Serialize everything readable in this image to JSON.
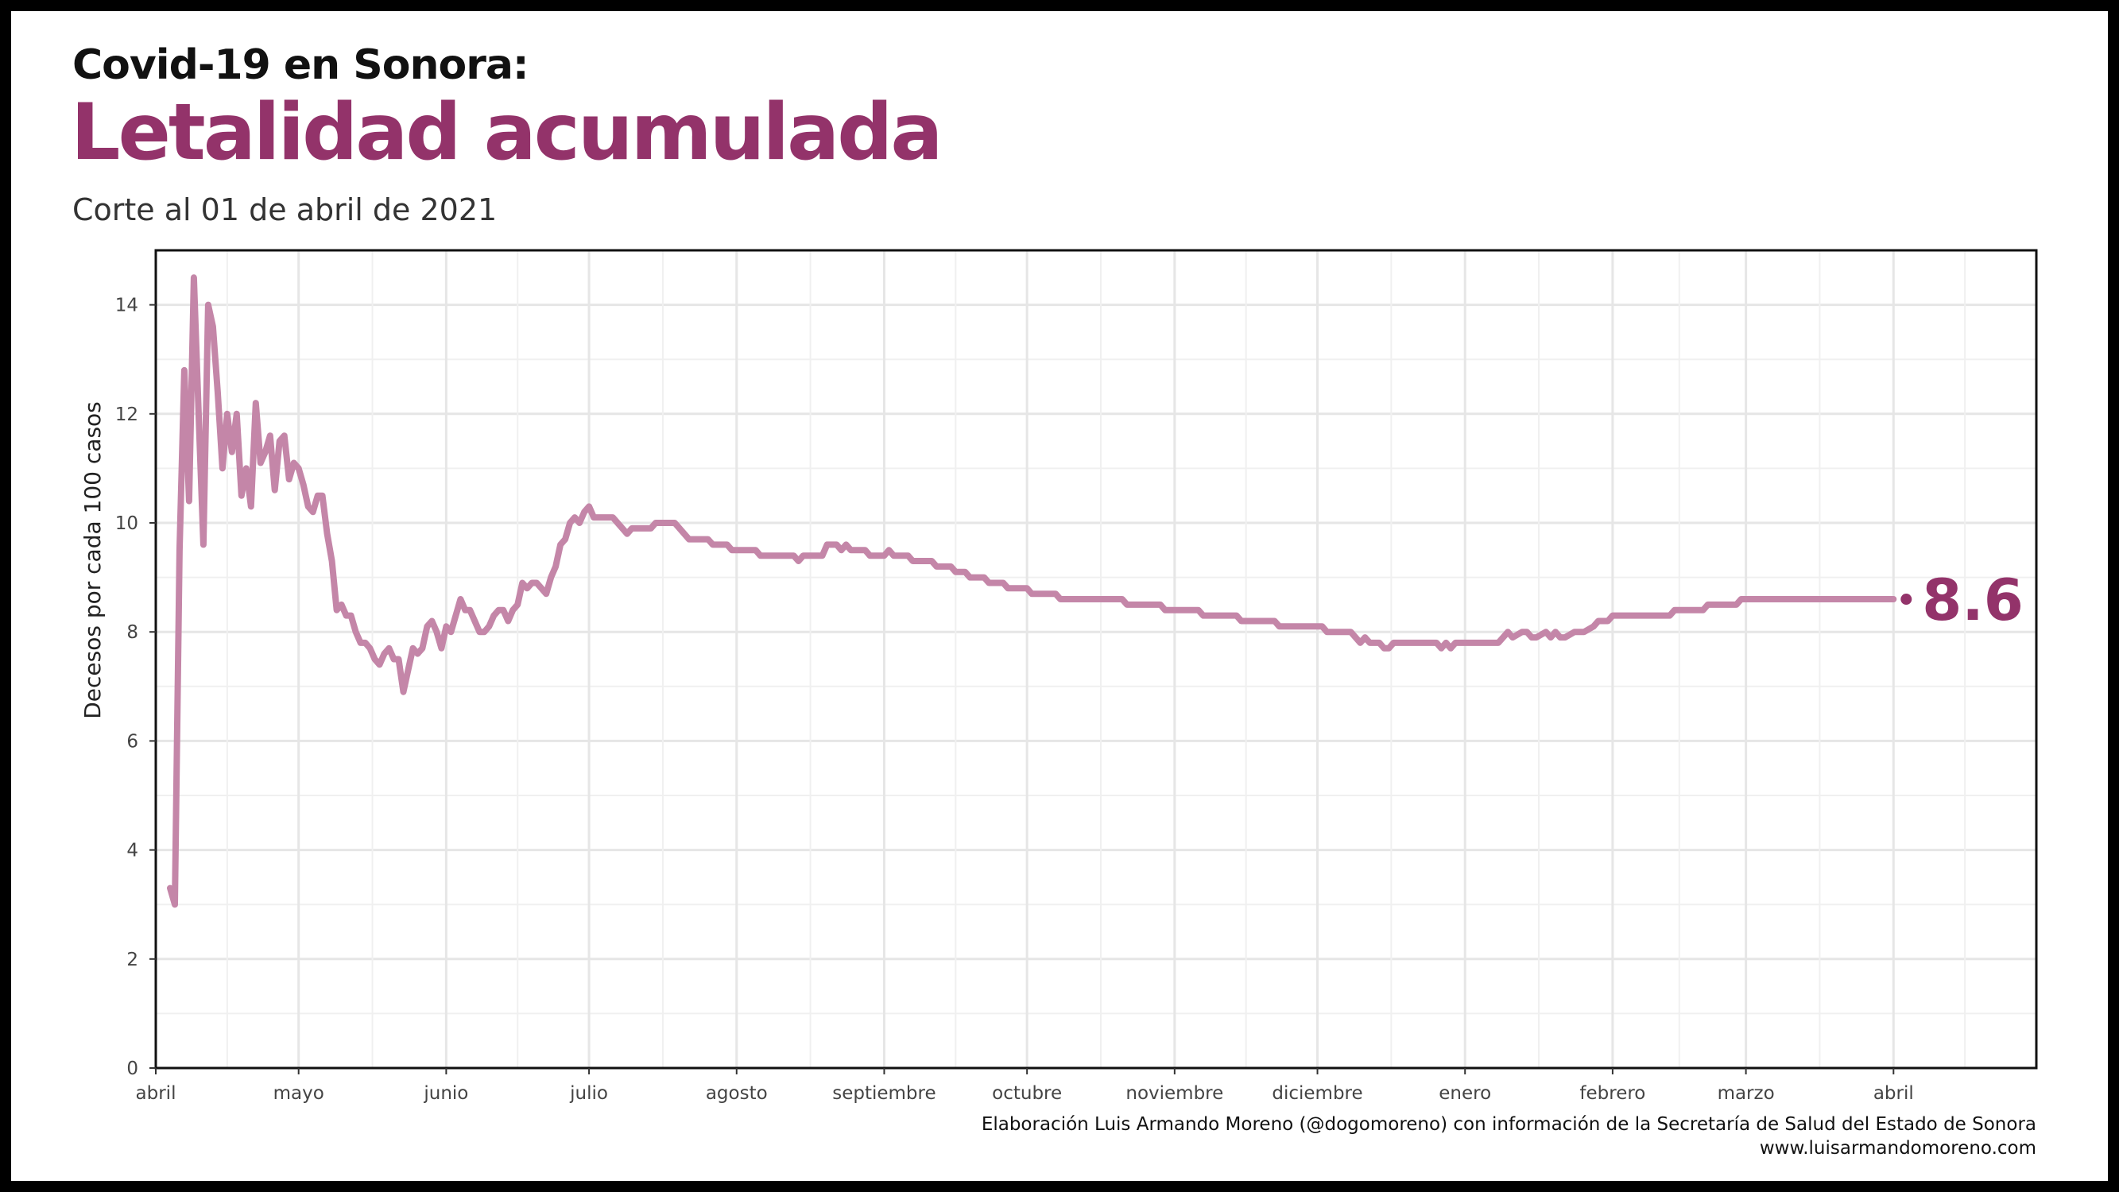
{
  "header": {
    "title_pre": "Covid-19 en Sonora:",
    "title_main": "Letalidad acumulada",
    "subtitle": "Corte al 01 de abril de 2021"
  },
  "caption": {
    "line1": "Elaboración Luis Armando Moreno (@dogomoreno) con información de la Secretaría de Salud del Estado de Sonora",
    "line2": "www.luisarmandomoreno.com"
  },
  "colors": {
    "accent": "#93336a",
    "line": "#c486a8",
    "title": "#111111",
    "grid": "#e6e6e6"
  },
  "chart_data": {
    "type": "line",
    "ylabel": "Decesos por cada 100 casos",
    "xlabel": "",
    "ylim": [
      0,
      15
    ],
    "yticks": [
      0,
      2,
      4,
      6,
      8,
      10,
      12,
      14
    ],
    "xdomain": [
      "2020-04-01",
      "2021-05-01"
    ],
    "xticks": [
      {
        "date": "2020-04-01",
        "label": "abril"
      },
      {
        "date": "2020-05-01",
        "label": "mayo"
      },
      {
        "date": "2020-06-01",
        "label": "junio"
      },
      {
        "date": "2020-07-01",
        "label": "julio"
      },
      {
        "date": "2020-08-01",
        "label": "agosto"
      },
      {
        "date": "2020-09-01",
        "label": "septiembre"
      },
      {
        "date": "2020-10-01",
        "label": "octubre"
      },
      {
        "date": "2020-11-01",
        "label": "noviembre"
      },
      {
        "date": "2020-12-01",
        "label": "diciembre"
      },
      {
        "date": "2021-01-01",
        "label": "enero"
      },
      {
        "date": "2021-02-01",
        "label": "febrero"
      },
      {
        "date": "2021-03-01",
        "label": "marzo"
      },
      {
        "date": "2021-04-01",
        "label": "abril"
      }
    ],
    "grid": true,
    "end_label": "8.6",
    "series": [
      {
        "points": [
          [
            "2020-04-04",
            3.3
          ],
          [
            "2020-04-05",
            3.0
          ],
          [
            "2020-04-06",
            9.5
          ],
          [
            "2020-04-07",
            12.8
          ],
          [
            "2020-04-08",
            10.4
          ],
          [
            "2020-04-09",
            14.5
          ],
          [
            "2020-04-10",
            12.0
          ],
          [
            "2020-04-11",
            9.6
          ],
          [
            "2020-04-12",
            14.0
          ],
          [
            "2020-04-13",
            13.6
          ],
          [
            "2020-04-14",
            12.4
          ],
          [
            "2020-04-15",
            11.0
          ],
          [
            "2020-04-16",
            12.0
          ],
          [
            "2020-04-17",
            11.3
          ],
          [
            "2020-04-18",
            12.0
          ],
          [
            "2020-04-19",
            10.5
          ],
          [
            "2020-04-20",
            11.0
          ],
          [
            "2020-04-21",
            10.3
          ],
          [
            "2020-04-22",
            12.2
          ],
          [
            "2020-04-23",
            11.1
          ],
          [
            "2020-04-24",
            11.3
          ],
          [
            "2020-04-25",
            11.6
          ],
          [
            "2020-04-26",
            10.6
          ],
          [
            "2020-04-27",
            11.5
          ],
          [
            "2020-04-28",
            11.6
          ],
          [
            "2020-04-29",
            10.8
          ],
          [
            "2020-04-30",
            11.1
          ],
          [
            "2020-05-01",
            11.0
          ],
          [
            "2020-05-02",
            10.7
          ],
          [
            "2020-05-03",
            10.3
          ],
          [
            "2020-05-04",
            10.2
          ],
          [
            "2020-05-05",
            10.5
          ],
          [
            "2020-05-06",
            10.5
          ],
          [
            "2020-05-07",
            9.8
          ],
          [
            "2020-05-08",
            9.3
          ],
          [
            "2020-05-09",
            8.4
          ],
          [
            "2020-05-10",
            8.5
          ],
          [
            "2020-05-11",
            8.3
          ],
          [
            "2020-05-12",
            8.3
          ],
          [
            "2020-05-13",
            8.0
          ],
          [
            "2020-05-14",
            7.8
          ],
          [
            "2020-05-15",
            7.8
          ],
          [
            "2020-05-16",
            7.7
          ],
          [
            "2020-05-17",
            7.5
          ],
          [
            "2020-05-18",
            7.4
          ],
          [
            "2020-05-19",
            7.6
          ],
          [
            "2020-05-20",
            7.7
          ],
          [
            "2020-05-21",
            7.5
          ],
          [
            "2020-05-22",
            7.5
          ],
          [
            "2020-05-23",
            6.9
          ],
          [
            "2020-05-24",
            7.3
          ],
          [
            "2020-05-25",
            7.7
          ],
          [
            "2020-05-26",
            7.6
          ],
          [
            "2020-05-27",
            7.7
          ],
          [
            "2020-05-28",
            8.1
          ],
          [
            "2020-05-29",
            8.2
          ],
          [
            "2020-05-30",
            8.0
          ],
          [
            "2020-05-31",
            7.7
          ],
          [
            "2020-06-01",
            8.1
          ],
          [
            "2020-06-02",
            8.0
          ],
          [
            "2020-06-03",
            8.3
          ],
          [
            "2020-06-04",
            8.6
          ],
          [
            "2020-06-05",
            8.4
          ],
          [
            "2020-06-06",
            8.4
          ],
          [
            "2020-06-07",
            8.2
          ],
          [
            "2020-06-08",
            8.0
          ],
          [
            "2020-06-09",
            8.0
          ],
          [
            "2020-06-10",
            8.1
          ],
          [
            "2020-06-11",
            8.3
          ],
          [
            "2020-06-12",
            8.4
          ],
          [
            "2020-06-13",
            8.4
          ],
          [
            "2020-06-14",
            8.2
          ],
          [
            "2020-06-15",
            8.4
          ],
          [
            "2020-06-16",
            8.5
          ],
          [
            "2020-06-17",
            8.9
          ],
          [
            "2020-06-18",
            8.8
          ],
          [
            "2020-06-19",
            8.9
          ],
          [
            "2020-06-20",
            8.9
          ],
          [
            "2020-06-21",
            8.8
          ],
          [
            "2020-06-22",
            8.7
          ],
          [
            "2020-06-23",
            9.0
          ],
          [
            "2020-06-24",
            9.2
          ],
          [
            "2020-06-25",
            9.6
          ],
          [
            "2020-06-26",
            9.7
          ],
          [
            "2020-06-27",
            10.0
          ],
          [
            "2020-06-28",
            10.1
          ],
          [
            "2020-06-29",
            10.0
          ],
          [
            "2020-06-30",
            10.2
          ],
          [
            "2020-07-01",
            10.3
          ],
          [
            "2020-07-02",
            10.1
          ],
          [
            "2020-07-04",
            10.1
          ],
          [
            "2020-07-06",
            10.1
          ],
          [
            "2020-07-08",
            9.9
          ],
          [
            "2020-07-09",
            9.8
          ],
          [
            "2020-07-10",
            9.9
          ],
          [
            "2020-07-14",
            9.9
          ],
          [
            "2020-07-15",
            10.0
          ],
          [
            "2020-07-19",
            10.0
          ],
          [
            "2020-07-21",
            9.8
          ],
          [
            "2020-07-22",
            9.7
          ],
          [
            "2020-07-26",
            9.7
          ],
          [
            "2020-07-27",
            9.6
          ],
          [
            "2020-07-30",
            9.6
          ],
          [
            "2020-07-31",
            9.5
          ],
          [
            "2020-08-05",
            9.5
          ],
          [
            "2020-08-06",
            9.4
          ],
          [
            "2020-08-12",
            9.4
          ],
          [
            "2020-08-13",
            9.4
          ],
          [
            "2020-08-14",
            9.3
          ],
          [
            "2020-08-15",
            9.4
          ],
          [
            "2020-08-19",
            9.4
          ],
          [
            "2020-08-20",
            9.6
          ],
          [
            "2020-08-22",
            9.6
          ],
          [
            "2020-08-23",
            9.5
          ],
          [
            "2020-08-24",
            9.6
          ],
          [
            "2020-08-25",
            9.5
          ],
          [
            "2020-08-28",
            9.5
          ],
          [
            "2020-08-29",
            9.4
          ],
          [
            "2020-09-01",
            9.4
          ],
          [
            "2020-09-02",
            9.5
          ],
          [
            "2020-09-03",
            9.4
          ],
          [
            "2020-09-06",
            9.4
          ],
          [
            "2020-09-07",
            9.3
          ],
          [
            "2020-09-11",
            9.3
          ],
          [
            "2020-09-12",
            9.2
          ],
          [
            "2020-09-15",
            9.2
          ],
          [
            "2020-09-16",
            9.1
          ],
          [
            "2020-09-18",
            9.1
          ],
          [
            "2020-09-19",
            9.0
          ],
          [
            "2020-09-22",
            9.0
          ],
          [
            "2020-09-23",
            8.9
          ],
          [
            "2020-09-26",
            8.9
          ],
          [
            "2020-09-27",
            8.8
          ],
          [
            "2020-10-01",
            8.8
          ],
          [
            "2020-10-02",
            8.7
          ],
          [
            "2020-10-07",
            8.7
          ],
          [
            "2020-10-08",
            8.6
          ],
          [
            "2020-10-21",
            8.6
          ],
          [
            "2020-10-22",
            8.5
          ],
          [
            "2020-10-29",
            8.5
          ],
          [
            "2020-10-30",
            8.4
          ],
          [
            "2020-11-06",
            8.4
          ],
          [
            "2020-11-07",
            8.3
          ],
          [
            "2020-11-14",
            8.3
          ],
          [
            "2020-11-15",
            8.2
          ],
          [
            "2020-11-22",
            8.2
          ],
          [
            "2020-11-23",
            8.1
          ],
          [
            "2020-12-02",
            8.1
          ],
          [
            "2020-12-03",
            8.0
          ],
          [
            "2020-12-08",
            8.0
          ],
          [
            "2020-12-10",
            7.8
          ],
          [
            "2020-12-11",
            7.9
          ],
          [
            "2020-12-12",
            7.8
          ],
          [
            "2020-12-14",
            7.8
          ],
          [
            "2020-12-15",
            7.7
          ],
          [
            "2020-12-16",
            7.7
          ],
          [
            "2020-12-17",
            7.8
          ],
          [
            "2020-12-26",
            7.8
          ],
          [
            "2020-12-27",
            7.7
          ],
          [
            "2020-12-28",
            7.8
          ],
          [
            "2020-12-29",
            7.7
          ],
          [
            "2020-12-30",
            7.8
          ],
          [
            "2021-01-08",
            7.8
          ],
          [
            "2021-01-09",
            7.9
          ],
          [
            "2021-01-10",
            8.0
          ],
          [
            "2021-01-11",
            7.9
          ],
          [
            "2021-01-13",
            8.0
          ],
          [
            "2021-01-14",
            8.0
          ],
          [
            "2021-01-15",
            7.9
          ],
          [
            "2021-01-16",
            7.9
          ],
          [
            "2021-01-18",
            8.0
          ],
          [
            "2021-01-19",
            7.9
          ],
          [
            "2021-01-20",
            8.0
          ],
          [
            "2021-01-21",
            7.9
          ],
          [
            "2021-01-22",
            7.9
          ],
          [
            "2021-01-24",
            8.0
          ],
          [
            "2021-01-26",
            8.0
          ],
          [
            "2021-01-28",
            8.1
          ],
          [
            "2021-01-29",
            8.2
          ],
          [
            "2021-01-31",
            8.2
          ],
          [
            "2021-02-01",
            8.3
          ],
          [
            "2021-02-13",
            8.3
          ],
          [
            "2021-02-14",
            8.4
          ],
          [
            "2021-02-20",
            8.4
          ],
          [
            "2021-02-21",
            8.5
          ],
          [
            "2021-02-27",
            8.5
          ],
          [
            "2021-02-28",
            8.6
          ],
          [
            "2021-04-01",
            8.6
          ]
        ]
      }
    ]
  }
}
